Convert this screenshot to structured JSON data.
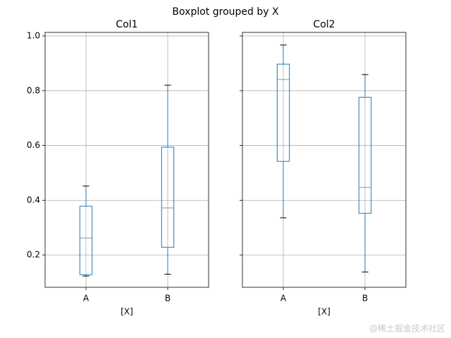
{
  "title": "Boxplot grouped by X",
  "watermark": "@稀土掘金技术社区",
  "chart_data": [
    {
      "type": "box",
      "title": "Col1",
      "xlabel": "[X]",
      "categories": [
        "A",
        "B"
      ],
      "boxes": [
        {
          "whislo": 0.123,
          "q1": 0.128,
          "med": 0.262,
          "q3": 0.378,
          "whishi": 0.452
        },
        {
          "whislo": 0.13,
          "q1": 0.228,
          "med": 0.372,
          "q3": 0.594,
          "whishi": 0.82
        }
      ],
      "color": "#1f77b4",
      "median_color": "#7f9f7f",
      "cap_color": "#000000",
      "ylim": [
        0.082,
        1.013
      ],
      "yticks": [
        0.2,
        0.4,
        0.6,
        0.8,
        {
          "value": 1,
          "label": "1.0"
        }
      ],
      "show_ytick_labels": true,
      "grid": true
    },
    {
      "type": "box",
      "title": "Col2",
      "xlabel": "[X]",
      "categories": [
        "A",
        "B"
      ],
      "boxes": [
        {
          "whislo": 0.336,
          "q1": 0.542,
          "med": 0.841,
          "q3": 0.897,
          "whishi": 0.967
        },
        {
          "whislo": 0.138,
          "q1": 0.352,
          "med": 0.447,
          "q3": 0.776,
          "whishi": 0.859
        }
      ],
      "color": "#1f77b4",
      "median_color": "#7f9f7f",
      "cap_color": "#000000",
      "ylim": [
        0.082,
        1.013
      ],
      "yticks": [
        0.2,
        0.4,
        0.6,
        0.8,
        {
          "value": 1,
          "label": "1.0"
        }
      ],
      "show_ytick_labels": false,
      "grid": true
    }
  ]
}
